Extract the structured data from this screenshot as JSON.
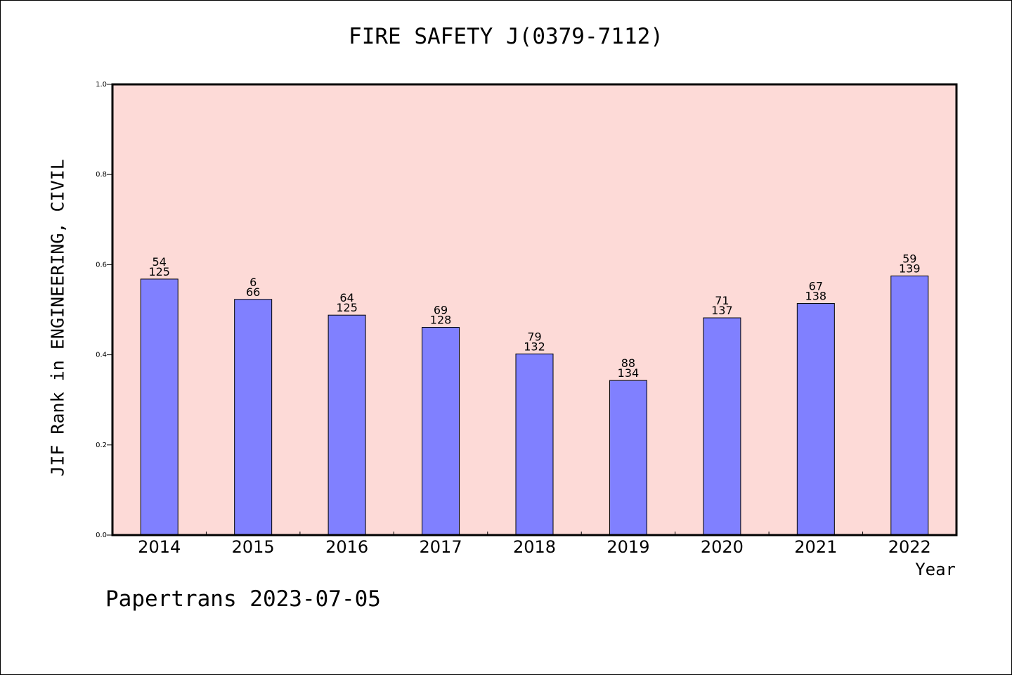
{
  "chart_data": {
    "type": "bar",
    "title": "FIRE SAFETY J(0379-7112)",
    "xlabel": "Year",
    "ylabel": "JIF Rank in ENGINEERING, CIVIL",
    "categories": [
      "2014",
      "2015",
      "2016",
      "2017",
      "2018",
      "2019",
      "2020",
      "2021",
      "2022"
    ],
    "values": [
      0.568,
      0.523,
      0.488,
      0.461,
      0.402,
      0.343,
      0.482,
      0.514,
      0.575
    ],
    "rank": [
      54,
      6,
      64,
      69,
      79,
      88,
      71,
      67,
      59
    ],
    "total": [
      125,
      66,
      125,
      128,
      132,
      134,
      137,
      138,
      139
    ],
    "ylim": [
      0,
      1.0
    ],
    "yticks": [
      "0.0",
      "0.2",
      "0.4",
      "0.6",
      "0.8",
      "1.0"
    ],
    "grid": false,
    "colors": {
      "plot_background": "#FDDAD7",
      "bar": "#8080FF",
      "bar_edge": "#000000"
    }
  },
  "footer": "Papertrans 2023-07-05"
}
